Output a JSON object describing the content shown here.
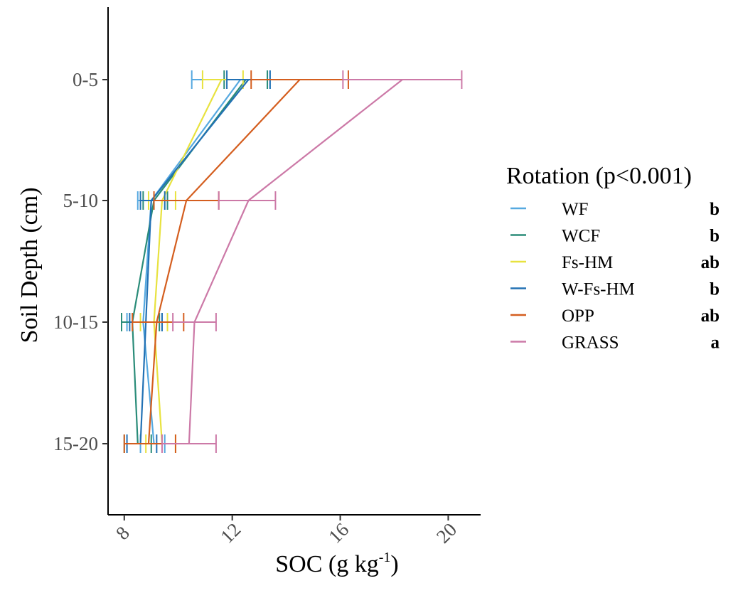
{
  "chart_data": {
    "type": "line",
    "orientation": "horizontal",
    "xlabel": "SOC (g kg",
    "xlabel_superscript": "-1",
    "xlabel_suffix": ")",
    "ylabel": "Soil Depth (cm)",
    "categories": [
      "0-5",
      "5-10",
      "10-15",
      "15-20"
    ],
    "x_ticks": [
      8,
      12,
      16,
      20
    ],
    "xlim": [
      7.4,
      21.2
    ],
    "legend": {
      "title": "Rotation (p<0.001)",
      "placement": "right"
    },
    "grid": false,
    "series": [
      {
        "name": "WF",
        "significance": "b",
        "color": "#56a9e0",
        "values": [
          12.3,
          9.0,
          8.7,
          9.1
        ],
        "error_low": [
          10.5,
          8.5,
          8.1,
          8.6
        ],
        "error_high": [
          13.4,
          9.6,
          9.4,
          9.5
        ]
      },
      {
        "name": "WCF",
        "significance": "b",
        "color": "#2a8c79",
        "values": [
          12.5,
          9.1,
          8.3,
          8.5
        ],
        "error_low": [
          11.7,
          8.7,
          7.9,
          8.0
        ],
        "error_high": [
          13.3,
          9.6,
          9.3,
          9.0
        ]
      },
      {
        "name": "Fs-HM",
        "significance": "ab",
        "color": "#e8e23f",
        "values": [
          11.6,
          9.4,
          9.1,
          9.4
        ],
        "error_low": [
          10.9,
          8.9,
          8.6,
          8.8
        ],
        "error_high": [
          12.4,
          9.9,
          9.6,
          9.9
        ]
      },
      {
        "name": "W-Fs-HM",
        "significance": "b",
        "color": "#2271b4",
        "values": [
          12.6,
          9.0,
          8.8,
          8.6
        ],
        "error_low": [
          11.8,
          8.6,
          8.2,
          8.1
        ],
        "error_high": [
          13.4,
          9.5,
          9.4,
          9.2
        ]
      },
      {
        "name": "OPP",
        "significance": "ab",
        "color": "#d45e1f",
        "values": [
          14.5,
          10.3,
          9.2,
          8.9
        ],
        "error_low": [
          12.7,
          9.1,
          8.3,
          8.0
        ],
        "error_high": [
          16.3,
          11.5,
          10.2,
          9.9
        ]
      },
      {
        "name": "GRASS",
        "significance": "a",
        "color": "#cc79a7",
        "values": [
          18.3,
          12.6,
          10.6,
          10.4
        ],
        "error_low": [
          16.1,
          11.5,
          9.8,
          9.4
        ],
        "error_high": [
          20.5,
          13.6,
          11.4,
          11.4
        ]
      }
    ]
  }
}
